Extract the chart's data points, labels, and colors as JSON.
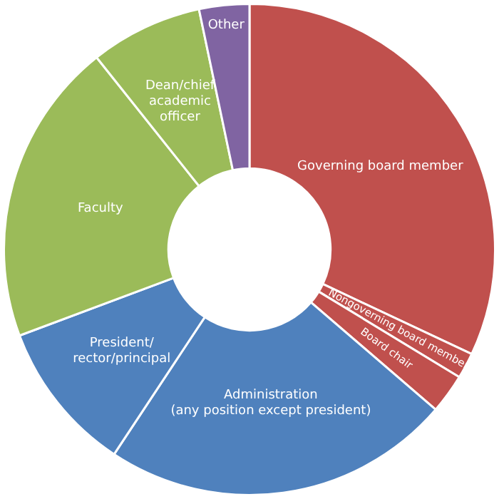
{
  "chart_data": {
    "type": "donut",
    "categories": [
      "Governing board member",
      "Nongoverning board member",
      "Board chair",
      "Administration\n(any position except president)",
      "President/\nrector/principal",
      "Faculty",
      "Dean/chief\nacademic\nofficer",
      "Other"
    ],
    "values": [
      32,
      1.7,
      2.6,
      23,
      10,
      20,
      7.4,
      3.3
    ],
    "colors": [
      "#c0504d",
      "#c0504d",
      "#c0504d",
      "#4f81bd",
      "#4f81bd",
      "#9bbb59",
      "#9bbb59",
      "#8064a2"
    ],
    "legend": false
  }
}
